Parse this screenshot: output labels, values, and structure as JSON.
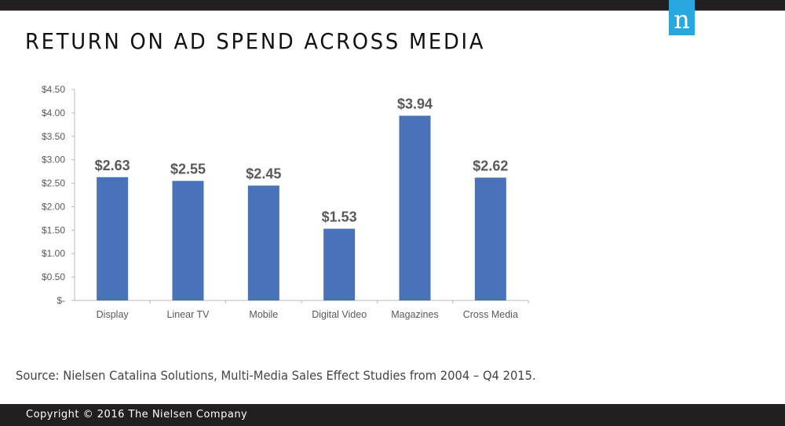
{
  "header": {
    "title": "RETURN ON AD SPEND ACROSS MEDIA",
    "logo_text": "n",
    "brand_color": "#29a8e0"
  },
  "chart_data": {
    "type": "bar",
    "title": "RETURN ON AD SPEND ACROSS MEDIA",
    "categories": [
      "Display",
      "Linear TV",
      "Mobile",
      "Digital Video",
      "Magazines",
      "Cross Media"
    ],
    "values": [
      2.63,
      2.55,
      2.45,
      1.53,
      3.94,
      2.62
    ],
    "data_labels": [
      "$2.63",
      "$2.55",
      "$2.45",
      "$1.53",
      "$3.94",
      "$2.62"
    ],
    "yticks": [
      "$-",
      "$0.50",
      "$1.00",
      "$1.50",
      "$2.00",
      "$2.50",
      "$3.00",
      "$3.50",
      "$4.00",
      "$4.50"
    ],
    "ylim": [
      0,
      4.5
    ],
    "grid": false,
    "bar_color": "#4a72b8",
    "xlabel": "",
    "ylabel": ""
  },
  "source": "Source: Nielsen Catalina Solutions, Multi-Media Sales Effect Studies from 2004 – Q4 2015.",
  "footer": {
    "copyright": "Copyright © 2016 The Nielsen Company"
  }
}
